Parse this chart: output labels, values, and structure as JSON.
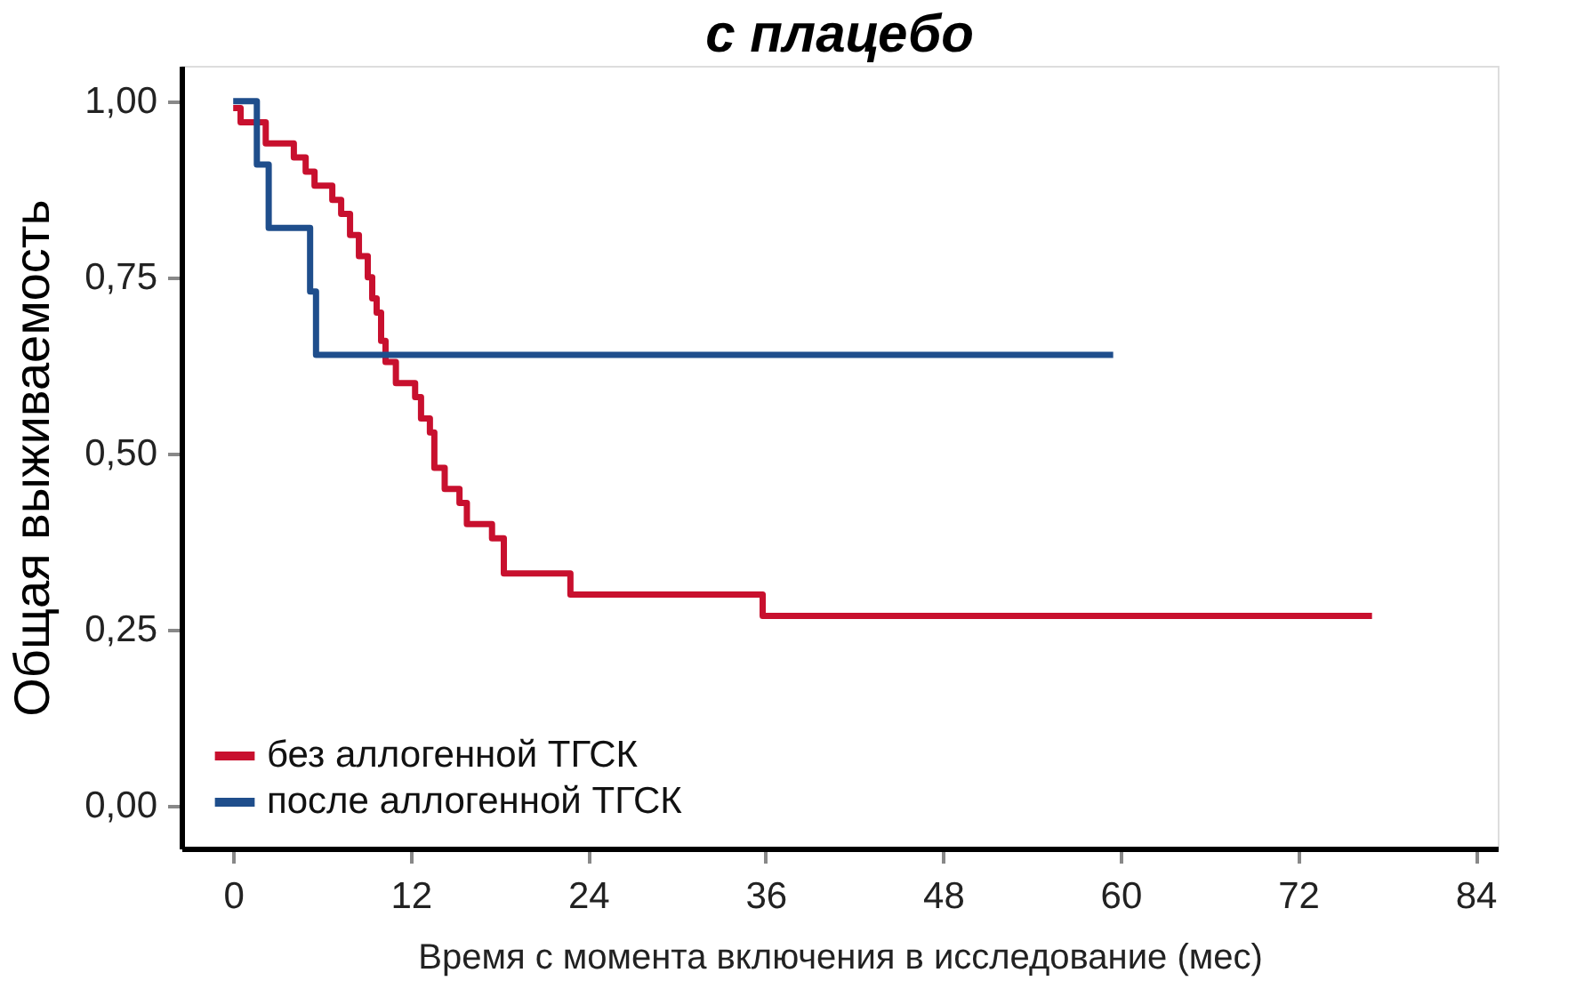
{
  "chart_data": {
    "type": "step",
    "title": "с плацебо",
    "xlabel": "Время с момента включения в исследование (мес)",
    "ylabel": "Общая выживаемость",
    "series": [
      {
        "name": "без аллогенной ТГСК",
        "color": "#c8102e",
        "x": [
          0,
          0.5,
          2.2,
          4.1,
          4.9,
          5.5,
          6.7,
          7.3,
          7.9,
          8.5,
          9.1,
          9.4,
          9.7,
          10,
          10.3,
          11,
          12.3,
          12.7,
          13.3,
          13.6,
          14.3,
          15.3,
          15.8,
          17.5,
          18.3,
          22.8,
          35.8,
          77
        ],
        "values": [
          0.99,
          0.97,
          0.94,
          0.92,
          0.9,
          0.88,
          0.86,
          0.84,
          0.81,
          0.78,
          0.75,
          0.72,
          0.7,
          0.66,
          0.63,
          0.6,
          0.58,
          0.55,
          0.53,
          0.48,
          0.45,
          0.43,
          0.4,
          0.38,
          0.33,
          0.3,
          0.27,
          0.27
        ]
      },
      {
        "name": "после аллогенной ТГСК",
        "color": "#1f4e8c",
        "x": [
          0,
          1.6,
          2.4,
          5.2,
          5.6,
          59.5
        ],
        "values": [
          1.0,
          0.91,
          0.82,
          0.73,
          0.64,
          0.64
        ]
      }
    ],
    "xlim": [
      -3.5,
      85.5
    ],
    "xticks": [
      0,
      12,
      24,
      36,
      48,
      60,
      72,
      84
    ],
    "ylim": [
      -0.06,
      1.05
    ],
    "yticks": [
      {
        "value": 0,
        "label": "0,00"
      },
      {
        "value": 0.25,
        "label": "0,25"
      },
      {
        "value": 0.5,
        "label": "0,50"
      },
      {
        "value": 0.75,
        "label": "0,75"
      },
      {
        "value": 1,
        "label": "1,00"
      }
    ],
    "grid": false,
    "legend": "bottom left",
    "line_style": "solid",
    "marker": "none"
  }
}
